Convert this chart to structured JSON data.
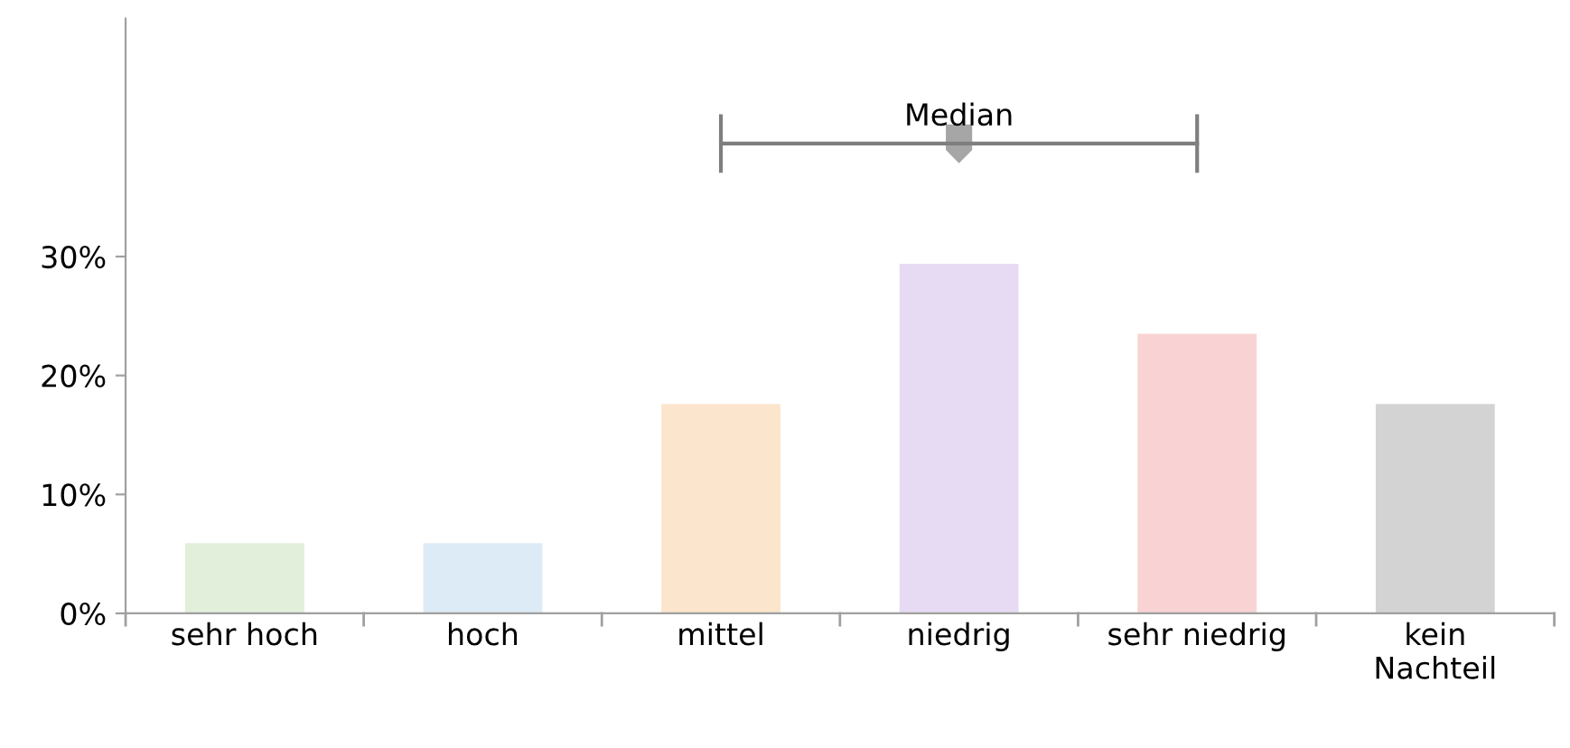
{
  "chart_data": {
    "type": "bar",
    "categories": [
      "sehr hoch",
      "hoch",
      "mittel",
      "niedrig",
      "sehr niedrig",
      "kein\nNachteil"
    ],
    "values": [
      5.9,
      5.9,
      17.6,
      29.4,
      23.5,
      17.6
    ],
    "colors": [
      "#e2efda",
      "#ddebf7",
      "#fbe5cd",
      "#e6dbf3",
      "#f9d3d3",
      "#d3d3d3"
    ],
    "ylim": [
      0,
      50
    ],
    "yticks": [
      {
        "value": 0,
        "label": "0%"
      },
      {
        "value": 10,
        "label": "10%"
      },
      {
        "value": 20,
        "label": "20%"
      },
      {
        "value": 30,
        "label": "30%"
      }
    ],
    "annotations": [
      "Median"
    ],
    "grid": false,
    "legend": false
  }
}
